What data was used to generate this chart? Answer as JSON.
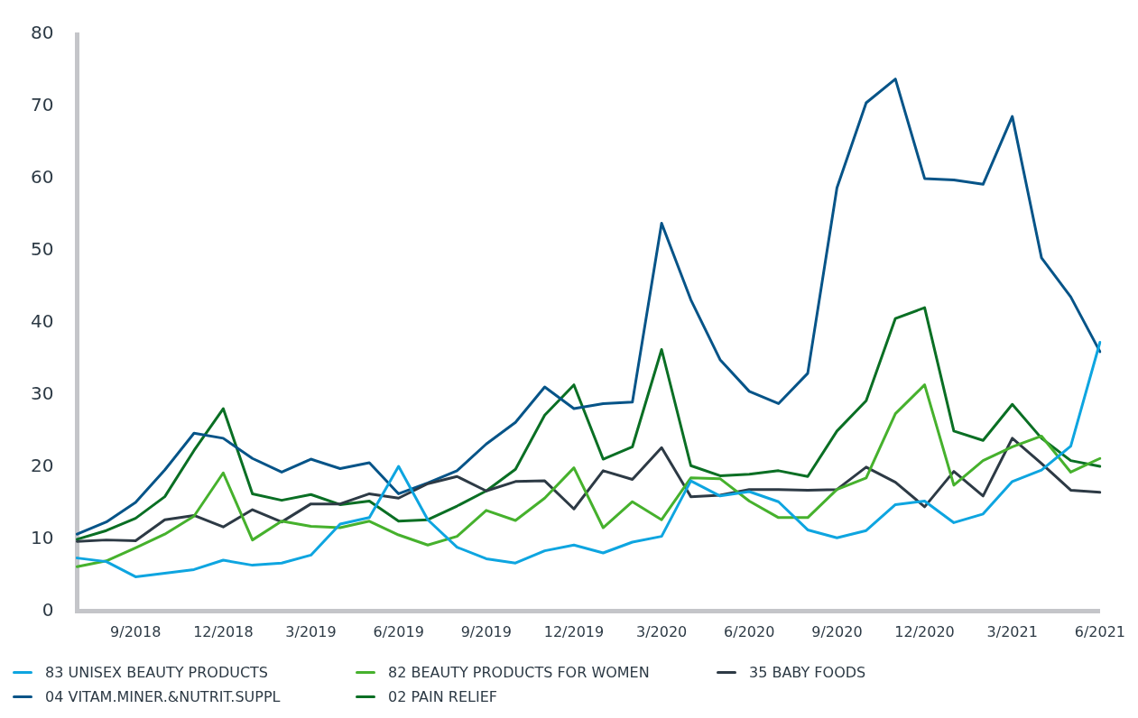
{
  "chart_data": {
    "type": "line",
    "categories": [
      null,
      null,
      "9/2018",
      null,
      null,
      "12/2018",
      null,
      null,
      "3/2019",
      null,
      null,
      "6/2019",
      null,
      null,
      "9/2019",
      null,
      null,
      "12/2019",
      null,
      null,
      "3/2020",
      null,
      null,
      "6/2020",
      null,
      null,
      "9/2020",
      null,
      null,
      "12/2020",
      null,
      null,
      "3/2021",
      null,
      null,
      "6/2021"
    ],
    "series": [
      {
        "name": "83 UNISEX BEAUTY PRODUCTS",
        "color": "#0ea5e0",
        "values": [
          7.4,
          6.9,
          4.8,
          5.3,
          5.8,
          7.1,
          6.4,
          6.7,
          7.8,
          12.1,
          13.0,
          20.1,
          12.7,
          8.9,
          7.3,
          6.7,
          8.4,
          9.2,
          8.1,
          9.6,
          10.4,
          18.1,
          16.0,
          16.6,
          15.2,
          11.3,
          10.2,
          11.2,
          14.8,
          15.3,
          12.3,
          13.5,
          18.0,
          19.6,
          22.9,
          37.3
        ]
      },
      {
        "name": "82 BEAUTY PRODUCTS FOR WOMEN",
        "color": "#46b12d",
        "values": [
          6.2,
          7.0,
          8.8,
          10.7,
          13.2,
          19.2,
          9.9,
          12.5,
          11.8,
          11.6,
          12.5,
          10.6,
          9.2,
          10.4,
          14.0,
          12.6,
          15.7,
          19.9,
          11.6,
          15.2,
          12.7,
          18.5,
          18.4,
          15.3,
          13.0,
          13.0,
          16.9,
          18.5,
          27.4,
          31.4,
          17.5,
          20.9,
          22.8,
          24.3,
          19.3,
          21.2
        ]
      },
      {
        "name": "35 BABY FOODS",
        "color": "#2d3a45",
        "values": [
          9.7,
          9.9,
          9.8,
          12.7,
          13.3,
          11.7,
          14.1,
          12.4,
          14.9,
          14.9,
          16.3,
          15.7,
          17.7,
          18.7,
          16.7,
          18.0,
          18.1,
          14.2,
          19.5,
          18.3,
          22.7,
          15.9,
          16.1,
          16.9,
          16.9,
          16.8,
          16.9,
          20.0,
          17.9,
          14.5,
          19.4,
          16.0,
          24.0,
          20.5,
          16.8,
          16.5
        ]
      },
      {
        "name": "04 VITAM.MINER.&NUTRIT.SUPPL",
        "color": "#065488",
        "values": [
          10.7,
          12.4,
          15.1,
          19.6,
          24.7,
          24.0,
          21.2,
          19.3,
          21.1,
          19.8,
          20.6,
          16.3,
          17.8,
          19.5,
          23.2,
          26.2,
          31.1,
          28.1,
          28.8,
          29.0,
          53.8,
          43.2,
          34.9,
          30.5,
          28.8,
          33.0,
          58.7,
          70.5,
          73.8,
          60.0,
          59.8,
          59.2,
          68.6,
          49.0,
          43.6,
          36.0
        ]
      },
      {
        "name": "02 PAIN RELIEF",
        "color": "#0a6f24",
        "values": [
          10.0,
          11.2,
          12.9,
          15.9,
          22.3,
          28.1,
          16.3,
          15.4,
          16.2,
          14.8,
          15.3,
          12.5,
          12.7,
          14.6,
          16.7,
          19.7,
          27.2,
          31.4,
          21.1,
          22.8,
          36.3,
          20.2,
          18.8,
          19.0,
          19.5,
          18.7,
          25.0,
          29.2,
          40.6,
          42.1,
          25.0,
          23.7,
          28.7,
          24.0,
          20.9,
          20.1
        ]
      }
    ],
    "ylim": [
      0,
      80
    ],
    "yticks": [
      0,
      10,
      20,
      30,
      40,
      50,
      60,
      70,
      80
    ],
    "grid": false,
    "legend": "bottom",
    "marker": "none",
    "line_style": "solid"
  }
}
